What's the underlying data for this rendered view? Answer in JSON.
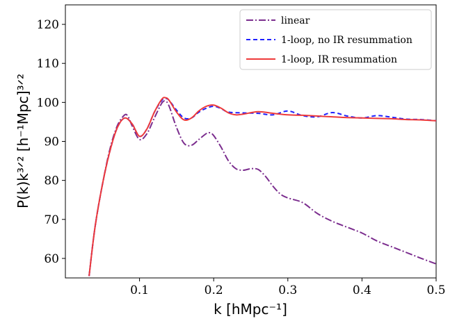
{
  "chart_data": {
    "type": "line",
    "xlabel": "k  [hMpc⁻¹]",
    "ylabel": "P(k)k³ᐟ²  [h⁻¹Mpc]³ᐟ²",
    "xlim": [
      0.0,
      0.5
    ],
    "ylim": [
      55,
      125
    ],
    "x_ticks": [
      0.1,
      0.2,
      0.3,
      0.4,
      0.5
    ],
    "y_ticks": [
      60,
      70,
      80,
      90,
      100,
      110,
      120
    ],
    "grid": false,
    "legend_position": "top-right",
    "series": [
      {
        "name": "linear",
        "color": "#7b2d8e",
        "style": "dashdot",
        "x": [
          0.032,
          0.04,
          0.05,
          0.06,
          0.07,
          0.08,
          0.085,
          0.09,
          0.1,
          0.11,
          0.12,
          0.13,
          0.135,
          0.14,
          0.15,
          0.16,
          0.17,
          0.18,
          0.19,
          0.195,
          0.2,
          0.21,
          0.22,
          0.23,
          0.24,
          0.25,
          0.26,
          0.27,
          0.28,
          0.29,
          0.3,
          0.32,
          0.34,
          0.36,
          0.38,
          0.4,
          0.42,
          0.44,
          0.46,
          0.48,
          0.5
        ],
        "y": [
          55.5,
          68,
          79,
          88,
          94,
          96.8,
          96.2,
          94,
          90.5,
          92,
          96,
          99.8,
          100.3,
          99,
          93.5,
          89.5,
          89,
          90.5,
          92,
          92.2,
          91.5,
          88.5,
          85,
          83,
          82.6,
          83,
          82.8,
          81,
          78.5,
          76.5,
          75.5,
          74.3,
          71.5,
          69.5,
          68,
          66.5,
          64.5,
          63,
          61.5,
          60,
          58.6
        ]
      },
      {
        "name": "1-loop, no IR resummation",
        "color": "#1f1fff",
        "style": "dashed",
        "x": [
          0.032,
          0.04,
          0.05,
          0.06,
          0.07,
          0.08,
          0.09,
          0.1,
          0.11,
          0.12,
          0.13,
          0.135,
          0.14,
          0.15,
          0.16,
          0.17,
          0.18,
          0.19,
          0.2,
          0.21,
          0.22,
          0.24,
          0.26,
          0.28,
          0.3,
          0.32,
          0.34,
          0.36,
          0.38,
          0.4,
          0.42,
          0.44,
          0.46,
          0.48,
          0.5
        ],
        "y": [
          55.5,
          68,
          79,
          87.5,
          93.5,
          96,
          94.5,
          91.3,
          93.2,
          97.5,
          100.5,
          101,
          100.5,
          98,
          96,
          96,
          97.5,
          98.5,
          99,
          98.4,
          97.5,
          97.3,
          97.2,
          96.8,
          97.8,
          96.6,
          96.3,
          97.4,
          96.5,
          96,
          96.6,
          96.2,
          95.7,
          95.6,
          95.3
        ]
      },
      {
        "name": "1-loop, IR resummation",
        "color": "#ee3a3a",
        "style": "solid",
        "x": [
          0.032,
          0.04,
          0.05,
          0.06,
          0.07,
          0.08,
          0.09,
          0.1,
          0.11,
          0.12,
          0.13,
          0.135,
          0.14,
          0.15,
          0.16,
          0.17,
          0.18,
          0.19,
          0.2,
          0.21,
          0.22,
          0.23,
          0.24,
          0.26,
          0.28,
          0.3,
          0.32,
          0.34,
          0.36,
          0.38,
          0.4,
          0.42,
          0.44,
          0.46,
          0.48,
          0.5
        ],
        "y": [
          55.5,
          68,
          79,
          87.5,
          93.5,
          96,
          94.5,
          91.3,
          93.2,
          97.5,
          100.8,
          101.2,
          100.5,
          97.5,
          95.5,
          96,
          97.8,
          99,
          99.3,
          98.5,
          97.3,
          96.8,
          97,
          97.6,
          97.2,
          96.8,
          96.7,
          96.5,
          96.3,
          96.1,
          96,
          95.9,
          95.8,
          95.6,
          95.5,
          95.3
        ]
      }
    ]
  }
}
